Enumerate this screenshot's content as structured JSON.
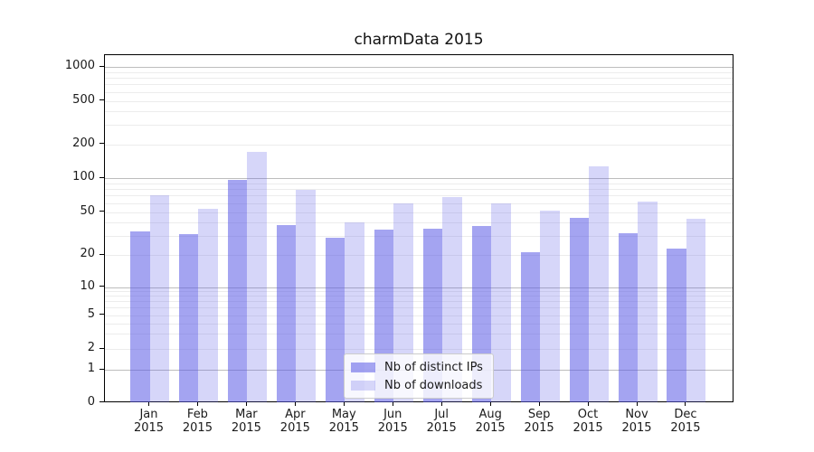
{
  "chart_data": {
    "type": "bar",
    "title": "charmData 2015",
    "categories": [
      "Jan",
      "Feb",
      "Mar",
      "Apr",
      "May",
      "Jun",
      "Jul",
      "Aug",
      "Sep",
      "Oct",
      "Nov",
      "Dec"
    ],
    "year": "2015",
    "series": [
      {
        "name": "Nb of distinct IPs",
        "color": "rgba(90,90,230,0.55)",
        "values": [
          33,
          31,
          96,
          38,
          29,
          34,
          35,
          37,
          21,
          44,
          32,
          23
        ]
      },
      {
        "name": "Nb of downloads",
        "color": "rgba(90,90,230,0.25)",
        "values": [
          70,
          53,
          170,
          78,
          40,
          60,
          68,
          60,
          51,
          127,
          62,
          43
        ]
      }
    ],
    "xlabel": "",
    "ylabel": "",
    "yscale": "log",
    "yticks": [
      0,
      1,
      2,
      5,
      10,
      20,
      50,
      100,
      200,
      500,
      1000
    ],
    "ylim": [
      0,
      1280
    ],
    "grid": "both",
    "legend_position": "lower center"
  },
  "colors": {
    "major_grid": "#bdbdbd",
    "minor_grid": "#ececec",
    "spine": "#000000",
    "text": "#1a1a1a"
  }
}
